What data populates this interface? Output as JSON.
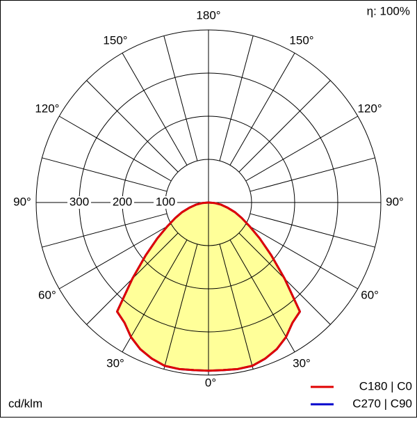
{
  "chart_data": {
    "type": "polar",
    "efficiency_label": "η: 100%",
    "unit_label": "cd/klm",
    "angles": [
      -90,
      -85,
      -80,
      -75,
      -70,
      -65,
      -60,
      -55,
      -50,
      -45,
      -40,
      -35,
      -30,
      -25,
      -20,
      -15,
      -10,
      -5,
      0,
      5,
      10,
      15,
      20,
      25,
      30,
      35,
      40,
      45,
      50,
      55,
      60,
      65,
      70,
      75,
      80,
      85,
      90
    ],
    "series": [
      {
        "name": "C270 | C90",
        "color": "#0000cc",
        "values": [
          0,
          15,
          30,
          45,
          65,
          85,
          110,
          145,
          190,
          250,
          330,
          340,
          360,
          375,
          385,
          392,
          392,
          390,
          390,
          390,
          392,
          392,
          385,
          375,
          360,
          340,
          330,
          250,
          190,
          145,
          110,
          85,
          65,
          45,
          30,
          15,
          0
        ]
      },
      {
        "name": "C180 | C0",
        "color": "#e00000",
        "values": [
          0,
          15,
          30,
          45,
          65,
          85,
          110,
          145,
          190,
          250,
          330,
          340,
          360,
          375,
          385,
          392,
          392,
          390,
          390,
          390,
          392,
          392,
          385,
          375,
          360,
          340,
          330,
          250,
          190,
          145,
          110,
          85,
          65,
          45,
          30,
          15,
          0
        ]
      }
    ],
    "fill_color": "#ffff99",
    "rlim": [
      0,
      400
    ],
    "rticks": [
      100,
      200,
      300
    ],
    "angle_ticks": [
      {
        "value": 0,
        "label": "0°"
      },
      {
        "value": 30,
        "label": "30°"
      },
      {
        "value": 60,
        "label": "60°"
      },
      {
        "value": 90,
        "label": "90°"
      },
      {
        "value": 120,
        "label": "120°"
      },
      {
        "value": 150,
        "label": "150°"
      },
      {
        "value": 180,
        "label": "180°"
      }
    ]
  }
}
